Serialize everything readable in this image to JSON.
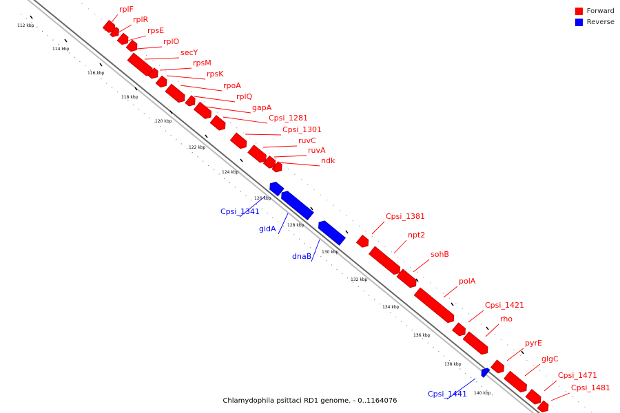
{
  "caption": "Chlamydophila psittaci RD1 genome. - 0..1164076",
  "legend": [
    {
      "label": "Forward",
      "color": "#ff0000"
    },
    {
      "label": "Reverse",
      "color": "#0000ff"
    }
  ],
  "colors": {
    "forward": "#ff0000",
    "reverse": "#0000ff",
    "backbone": "#777777"
  },
  "ticks": [
    "112 kbp",
    "114 kbp",
    "116 kbp",
    "118 kbp",
    "120 kbp",
    "122 kbp",
    "124 kbp",
    "126 kbp",
    "128 kbp",
    "130 kbp",
    "132 kbp",
    "134 kbp",
    "136 kbp",
    "138 kbp",
    "140 kbp"
  ],
  "genes": [
    {
      "name": "rplF",
      "strand": "forward"
    },
    {
      "name": "rplR",
      "strand": "forward"
    },
    {
      "name": "rpsE",
      "strand": "forward"
    },
    {
      "name": "rplO",
      "strand": "forward"
    },
    {
      "name": "secY",
      "strand": "forward"
    },
    {
      "name": "rpsM",
      "strand": "forward"
    },
    {
      "name": "rpsK",
      "strand": "forward"
    },
    {
      "name": "rpoA",
      "strand": "forward"
    },
    {
      "name": "rplQ",
      "strand": "forward"
    },
    {
      "name": "gapA",
      "strand": "forward"
    },
    {
      "name": "Cpsi_1281",
      "strand": "forward"
    },
    {
      "name": "Cpsi_1301",
      "strand": "forward"
    },
    {
      "name": "ruvC",
      "strand": "forward"
    },
    {
      "name": "ruvA",
      "strand": "forward"
    },
    {
      "name": "ndk",
      "strand": "forward"
    },
    {
      "name": "Cpsi_1341",
      "strand": "reverse"
    },
    {
      "name": "gidA",
      "strand": "reverse"
    },
    {
      "name": "dnaB",
      "strand": "reverse"
    },
    {
      "name": "Cpsi_1381",
      "strand": "forward"
    },
    {
      "name": "npt2",
      "strand": "forward"
    },
    {
      "name": "sohB",
      "strand": "forward"
    },
    {
      "name": "polA",
      "strand": "forward"
    },
    {
      "name": "Cpsi_1421",
      "strand": "forward"
    },
    {
      "name": "rho",
      "strand": "forward"
    },
    {
      "name": "pyrE",
      "strand": "forward"
    },
    {
      "name": "glgC",
      "strand": "forward"
    },
    {
      "name": "Cpsi_1441",
      "strand": "reverse"
    },
    {
      "name": "Cpsi_1471",
      "strand": "forward"
    },
    {
      "name": "Cpsi_1481",
      "strand": "forward"
    }
  ]
}
